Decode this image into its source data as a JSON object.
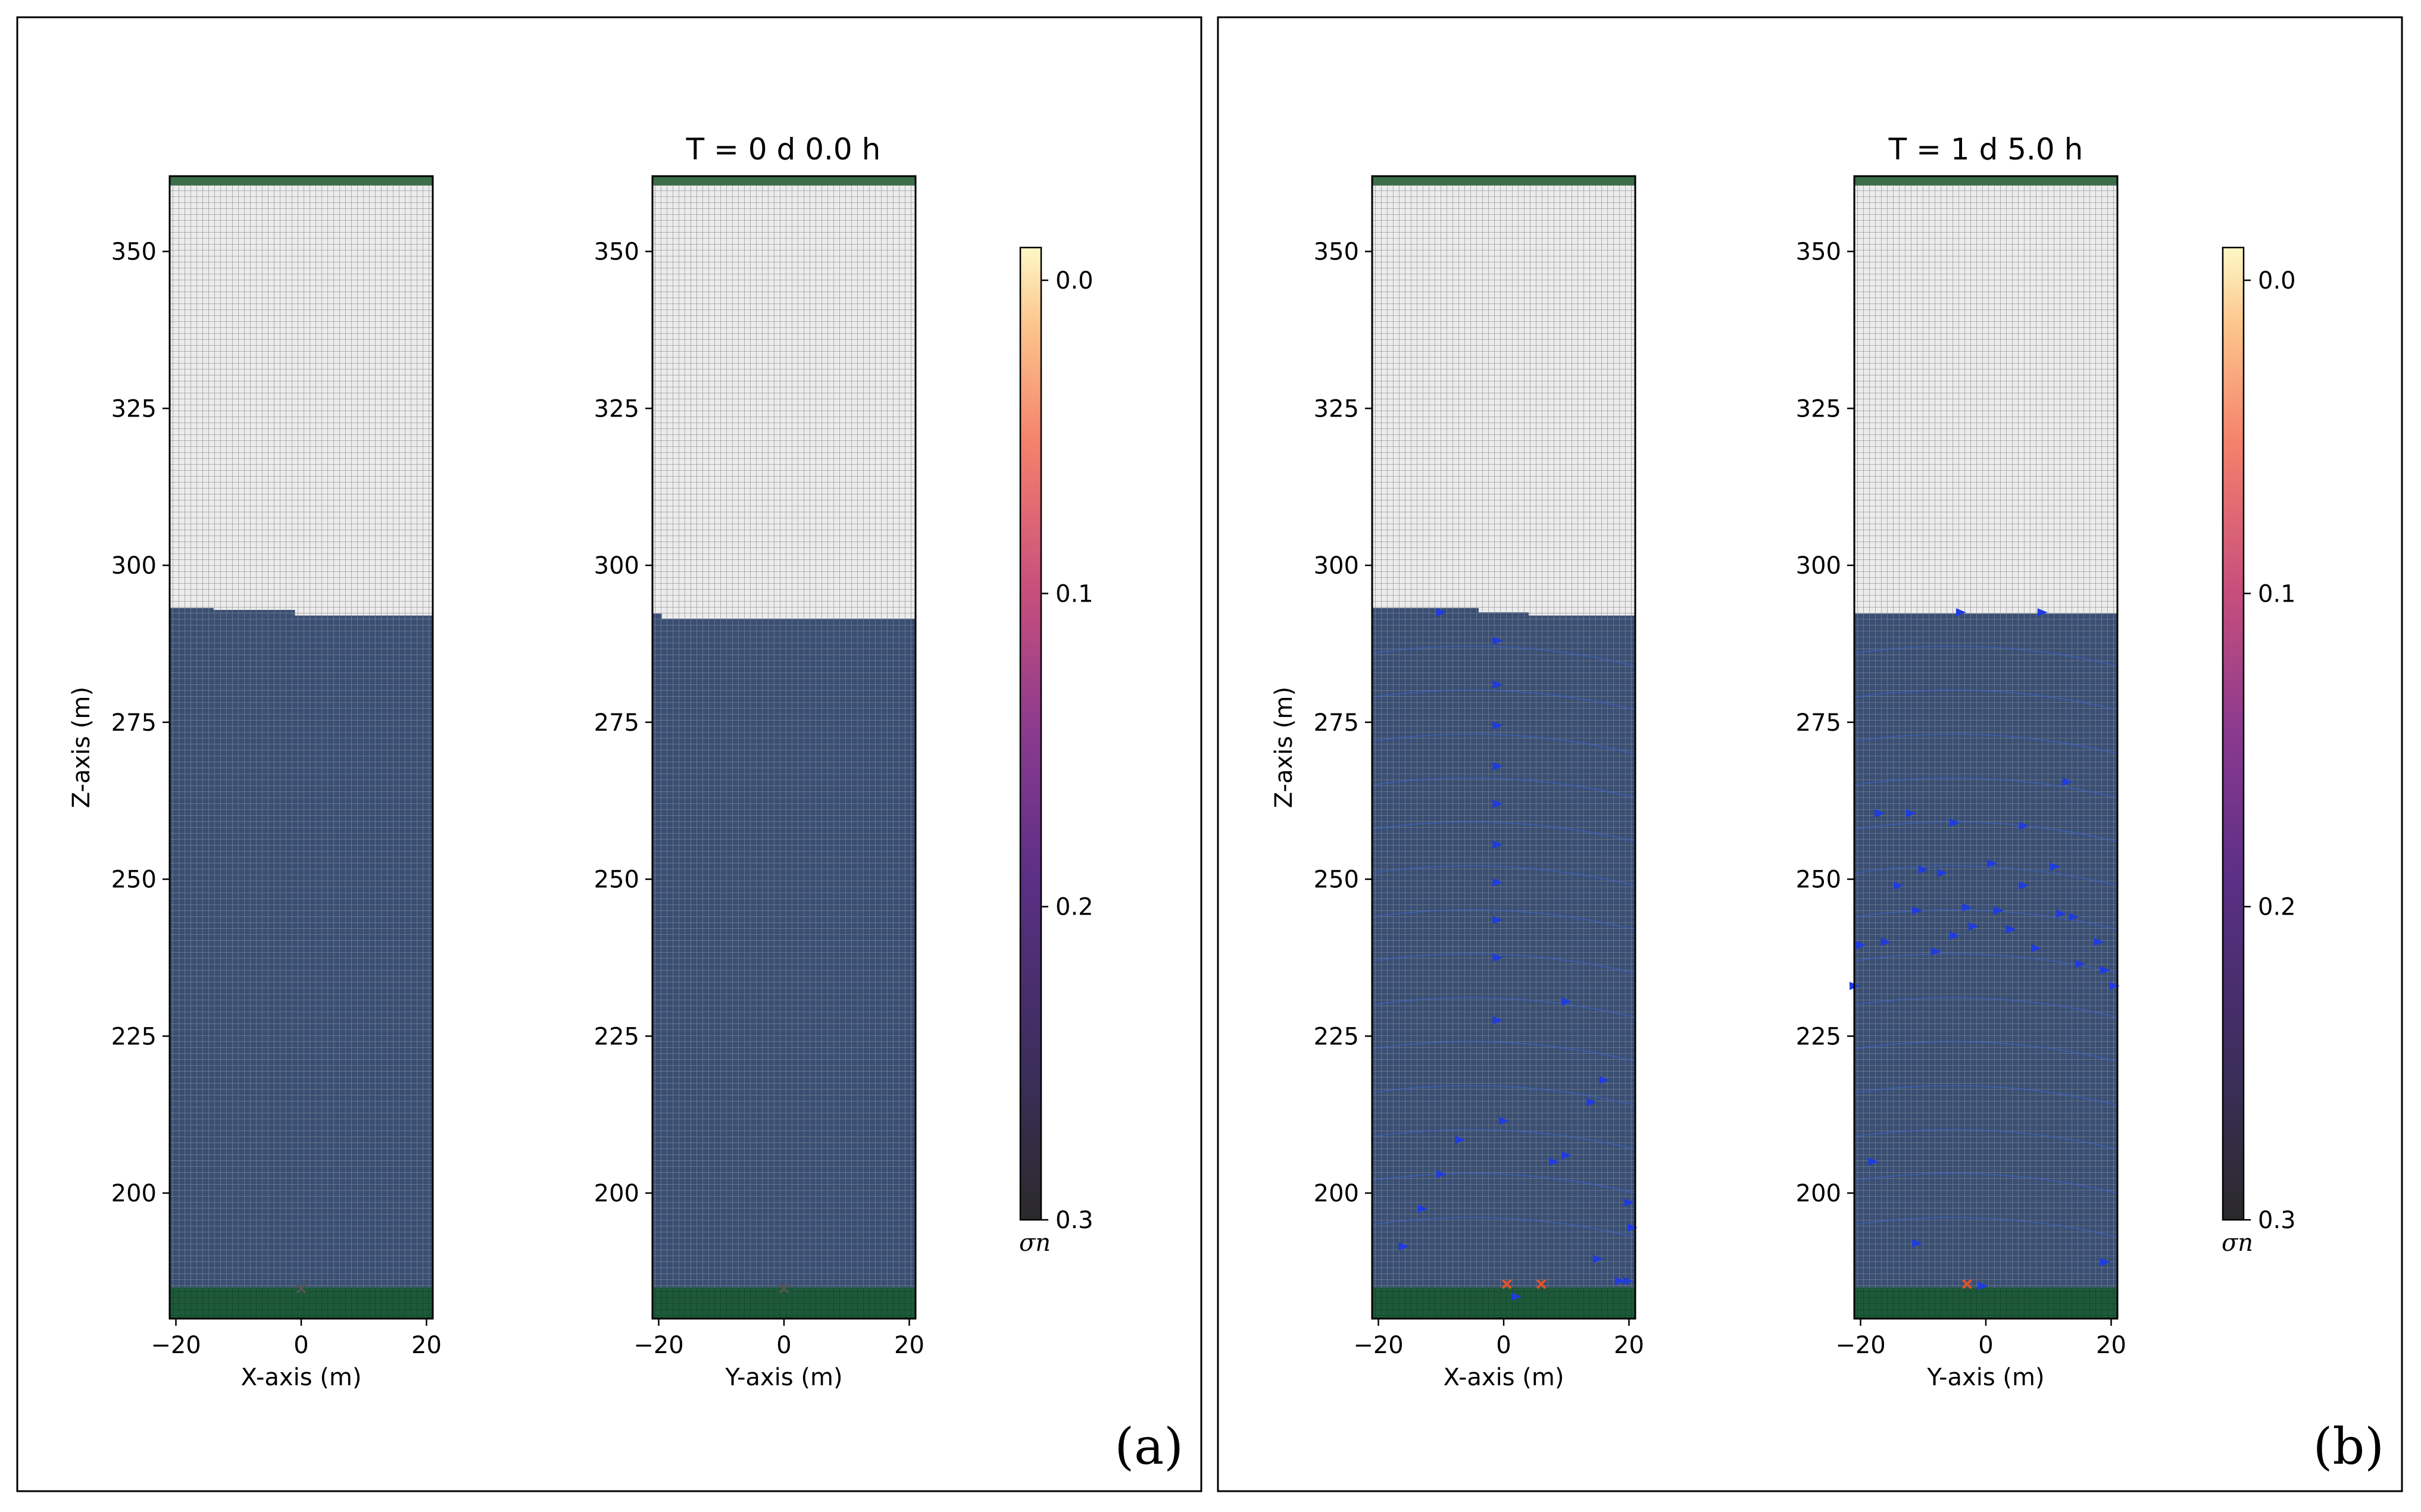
{
  "figure": {
    "panels": [
      {
        "tag": "(a)",
        "title": "T = 0 d  0.0 h",
        "colorbar": {
          "ticks": [
            "0.0",
            "0.1",
            "0.2",
            "0.3"
          ],
          "label": "σn"
        },
        "subplots": [
          {
            "xlabel": "X-axis (m)",
            "ylabel": "Z-axis (m)"
          },
          {
            "xlabel": "Y-axis (m)",
            "ylabel": ""
          }
        ]
      },
      {
        "tag": "(b)",
        "title": "T = 1 d  5.0 h",
        "colorbar": {
          "ticks": [
            "0.0",
            "0.1",
            "0.2",
            "0.3"
          ],
          "label": "σn"
        },
        "subplots": [
          {
            "xlabel": "X-axis (m)",
            "ylabel": "Z-axis (m)"
          },
          {
            "xlabel": "Y-axis (m)",
            "ylabel": ""
          }
        ]
      }
    ]
  },
  "chart_data": [
    {
      "type": "scatter",
      "panel": "a",
      "subplot": "x-z",
      "title": "",
      "xlabel": "X-axis (m)",
      "ylabel": "Z-axis (m)",
      "xlim": [
        -21,
        21
      ],
      "ylim": [
        180,
        362
      ],
      "xticks": [
        -20,
        0,
        20
      ],
      "yticks": [
        200,
        225,
        250,
        275,
        300,
        325,
        350
      ],
      "regions": [
        {
          "name": "base layer",
          "zmin": 180,
          "zmax": 185,
          "color": "#1e5a3a"
        },
        {
          "name": "saturated zone",
          "zmin": 185,
          "zmax": 292,
          "color": "#3a4f72"
        },
        {
          "name": "unsaturated zone",
          "zmin": 292,
          "zmax": 360.5,
          "color": "#ececec"
        },
        {
          "name": "top layer",
          "zmin": 360.5,
          "zmax": 362,
          "color": "#3c6e4a"
        }
      ],
      "interface_profile": [
        [
          -21,
          293.2
        ],
        [
          -14,
          293.2
        ],
        [
          -14,
          292.9
        ],
        [
          -1,
          292.9
        ],
        [
          -1,
          291.7
        ],
        [
          14,
          291.7
        ],
        [
          14,
          290.7
        ],
        [
          21,
          290.7
        ]
      ],
      "points": [
        {
          "x": 0,
          "z": 184.8,
          "color": "#555555",
          "marker": "x"
        }
      ],
      "colormap": {
        "name": "magma",
        "range": [
          0.0,
          0.3
        ]
      }
    },
    {
      "type": "scatter",
      "panel": "a",
      "subplot": "y-z",
      "title": "T = 0 d  0.0 h",
      "xlabel": "Y-axis (m)",
      "ylabel": "",
      "xlim": [
        -21,
        21
      ],
      "ylim": [
        180,
        362
      ],
      "xticks": [
        -20,
        0,
        20
      ],
      "yticks": [
        200,
        225,
        250,
        275,
        300,
        325,
        350
      ],
      "regions": [
        {
          "name": "base layer",
          "zmin": 180,
          "zmax": 185,
          "color": "#1e5a3a"
        },
        {
          "name": "saturated zone",
          "zmin": 185,
          "zmax": 291.5,
          "color": "#3a4f72"
        },
        {
          "name": "unsaturated zone",
          "zmin": 291.5,
          "zmax": 360.5,
          "color": "#ececec"
        },
        {
          "name": "top layer",
          "zmin": 360.5,
          "zmax": 362,
          "color": "#3c6e4a"
        }
      ],
      "interface_profile": [
        [
          -21,
          292.3
        ],
        [
          -19.5,
          292.3
        ],
        [
          -19.5,
          291.5
        ],
        [
          21,
          291.5
        ]
      ],
      "points": [
        {
          "x": 0,
          "z": 184.8,
          "color": "#555555",
          "marker": "x"
        }
      ],
      "colormap": {
        "name": "magma",
        "range": [
          0.0,
          0.3
        ]
      }
    },
    {
      "type": "scatter",
      "panel": "b",
      "subplot": "x-z",
      "title": "",
      "xlabel": "X-axis (m)",
      "ylabel": "Z-axis (m)",
      "xlim": [
        -21,
        21
      ],
      "ylim": [
        180,
        362
      ],
      "xticks": [
        -20,
        0,
        20
      ],
      "yticks": [
        200,
        225,
        250,
        275,
        300,
        325,
        350
      ],
      "regions": [
        {
          "name": "base layer",
          "zmin": 180,
          "zmax": 185,
          "color": "#1e5a3a"
        },
        {
          "name": "saturated zone",
          "zmin": 185,
          "zmax": 292,
          "color": "#3a4f72"
        },
        {
          "name": "unsaturated zone",
          "zmin": 292,
          "zmax": 360.5,
          "color": "#ececec"
        },
        {
          "name": "top layer",
          "zmin": 360.5,
          "zmax": 362,
          "color": "#3c6e4a"
        }
      ],
      "interface_profile": [
        [
          -21,
          293.2
        ],
        [
          -4,
          293.2
        ],
        [
          -4,
          292.5
        ],
        [
          4,
          292.5
        ],
        [
          4,
          291.8
        ],
        [
          17,
          291.8
        ],
        [
          17,
          291
        ],
        [
          21,
          291
        ]
      ],
      "points": [
        {
          "x": -10,
          "z": 292.5,
          "color": "#1f3ce0"
        },
        {
          "x": -1,
          "z": 288,
          "color": "#1f3ce0"
        },
        {
          "x": -1,
          "z": 281,
          "color": "#1f3ce0"
        },
        {
          "x": -1,
          "z": 274.5,
          "color": "#1f3ce0"
        },
        {
          "x": -1,
          "z": 268,
          "color": "#1f3ce0"
        },
        {
          "x": -1,
          "z": 262,
          "color": "#1f3ce0"
        },
        {
          "x": -1,
          "z": 255.5,
          "color": "#1f3ce0"
        },
        {
          "x": -1,
          "z": 249.5,
          "color": "#1f3ce0"
        },
        {
          "x": -1,
          "z": 243.5,
          "color": "#1f3ce0"
        },
        {
          "x": -1,
          "z": 237.5,
          "color": "#1f3ce0"
        },
        {
          "x": -1,
          "z": 227.5,
          "color": "#1f3ce0"
        },
        {
          "x": 10,
          "z": 230.5,
          "color": "#1f3ce0"
        },
        {
          "x": 16,
          "z": 218,
          "color": "#1f3ce0"
        },
        {
          "x": 14,
          "z": 214.5,
          "color": "#1f3ce0"
        },
        {
          "x": 0,
          "z": 211.5,
          "color": "#1f3ce0"
        },
        {
          "x": -7,
          "z": 208.5,
          "color": "#1f3ce0"
        },
        {
          "x": 10,
          "z": 206,
          "color": "#1f3ce0"
        },
        {
          "x": 8,
          "z": 205,
          "color": "#1f3ce0"
        },
        {
          "x": -10,
          "z": 203,
          "color": "#1f3ce0"
        },
        {
          "x": 20,
          "z": 198.5,
          "color": "#1f3ce0"
        },
        {
          "x": -13,
          "z": 197.5,
          "color": "#1f3ce0"
        },
        {
          "x": 20.5,
          "z": 194.5,
          "color": "#1f3ce0"
        },
        {
          "x": -16,
          "z": 191.5,
          "color": "#1f3ce0"
        },
        {
          "x": 15,
          "z": 189.5,
          "color": "#1f3ce0"
        },
        {
          "x": 18.5,
          "z": 186,
          "color": "#1f3ce0"
        },
        {
          "x": 19.8,
          "z": 186,
          "color": "#1f3ce0"
        },
        {
          "x": 2,
          "z": 183.5,
          "color": "#1f3ce0"
        },
        {
          "x": 0.5,
          "z": 185.5,
          "color": "#e0522c",
          "marker": "x"
        },
        {
          "x": 6,
          "z": 185.5,
          "color": "#e0522c",
          "marker": "x"
        }
      ],
      "colormap": {
        "name": "magma",
        "range": [
          0.0,
          0.3
        ]
      }
    },
    {
      "type": "scatter",
      "panel": "b",
      "subplot": "y-z",
      "title": "T = 1 d  5.0 h",
      "xlabel": "Y-axis (m)",
      "ylabel": "",
      "xlim": [
        -21,
        21
      ],
      "ylim": [
        180,
        362
      ],
      "xticks": [
        -20,
        0,
        20
      ],
      "yticks": [
        200,
        225,
        250,
        275,
        300,
        325,
        350
      ],
      "regions": [
        {
          "name": "base layer",
          "zmin": 180,
          "zmax": 185,
          "color": "#1e5a3a"
        },
        {
          "name": "saturated zone",
          "zmin": 185,
          "zmax": 292.3,
          "color": "#3a4f72"
        },
        {
          "name": "unsaturated zone",
          "zmin": 292.3,
          "zmax": 360.5,
          "color": "#ececec"
        },
        {
          "name": "top layer",
          "zmin": 360.5,
          "zmax": 362,
          "color": "#3c6e4a"
        }
      ],
      "interface_profile": [
        [
          -21,
          292.3
        ],
        [
          21,
          292.3
        ]
      ],
      "points": [
        {
          "x": -4,
          "z": 292.5,
          "color": "#1f3ce0"
        },
        {
          "x": 9,
          "z": 292.5,
          "color": "#1f3ce0"
        },
        {
          "x": 13,
          "z": 265.5,
          "color": "#1f3ce0"
        },
        {
          "x": -17,
          "z": 260.5,
          "color": "#1f3ce0"
        },
        {
          "x": -12,
          "z": 260.5,
          "color": "#1f3ce0"
        },
        {
          "x": -5,
          "z": 259,
          "color": "#1f3ce0"
        },
        {
          "x": 6,
          "z": 258.5,
          "color": "#1f3ce0"
        },
        {
          "x": 1,
          "z": 252.5,
          "color": "#1f3ce0"
        },
        {
          "x": 11,
          "z": 252,
          "color": "#1f3ce0"
        },
        {
          "x": -10,
          "z": 251.5,
          "color": "#1f3ce0"
        },
        {
          "x": -7,
          "z": 251,
          "color": "#1f3ce0"
        },
        {
          "x": -14,
          "z": 249,
          "color": "#1f3ce0"
        },
        {
          "x": 6,
          "z": 249,
          "color": "#1f3ce0"
        },
        {
          "x": -3,
          "z": 245.5,
          "color": "#1f3ce0"
        },
        {
          "x": 2,
          "z": 245,
          "color": "#1f3ce0"
        },
        {
          "x": -11,
          "z": 245,
          "color": "#1f3ce0"
        },
        {
          "x": 12,
          "z": 244.5,
          "color": "#1f3ce0"
        },
        {
          "x": 14,
          "z": 244,
          "color": "#1f3ce0"
        },
        {
          "x": -2,
          "z": 242.5,
          "color": "#1f3ce0"
        },
        {
          "x": 4,
          "z": 242,
          "color": "#1f3ce0"
        },
        {
          "x": -5,
          "z": 241,
          "color": "#1f3ce0"
        },
        {
          "x": -16,
          "z": 240,
          "color": "#1f3ce0"
        },
        {
          "x": -20,
          "z": 239.5,
          "color": "#1f3ce0"
        },
        {
          "x": 18,
          "z": 240,
          "color": "#1f3ce0"
        },
        {
          "x": 8,
          "z": 239,
          "color": "#1f3ce0"
        },
        {
          "x": -8,
          "z": 238.5,
          "color": "#1f3ce0"
        },
        {
          "x": 15,
          "z": 236.5,
          "color": "#1f3ce0"
        },
        {
          "x": 19,
          "z": 235.5,
          "color": "#1f3ce0"
        },
        {
          "x": -21,
          "z": 233,
          "color": "#1f3ce0"
        },
        {
          "x": 20.5,
          "z": 233,
          "color": "#1f3ce0"
        },
        {
          "x": -18,
          "z": 205,
          "color": "#1f3ce0"
        },
        {
          "x": -11,
          "z": 192,
          "color": "#1f3ce0"
        },
        {
          "x": 19,
          "z": 189,
          "color": "#1f3ce0"
        },
        {
          "x": -0.5,
          "z": 185.2,
          "color": "#1f3ce0"
        },
        {
          "x": -3,
          "z": 185.5,
          "color": "#e0522c",
          "marker": "x"
        }
      ],
      "colormap": {
        "name": "magma",
        "range": [
          0.0,
          0.3
        ]
      }
    }
  ]
}
